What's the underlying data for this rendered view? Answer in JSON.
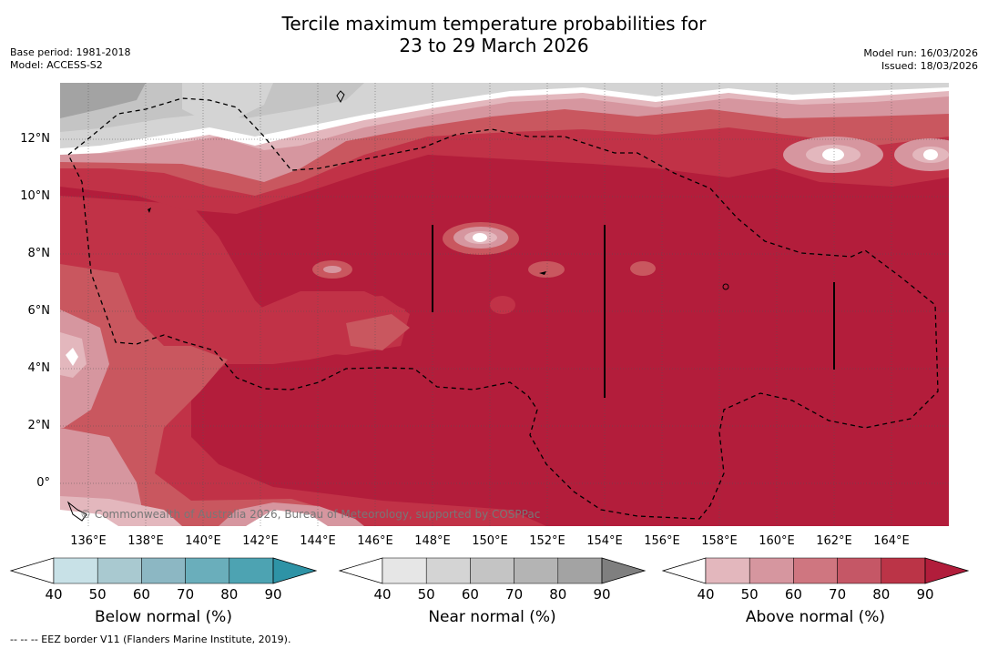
{
  "title_line1": "Tercile maximum temperature probabilities for",
  "title_line2": "23 to 29 March 2026",
  "base_period": "Base period: 1981-2018",
  "model": "Model: ACCESS-S2",
  "model_run": "Model run: 16/03/2026",
  "issued": "Issued: 18/03/2026",
  "lat_labels": [
    "12°N",
    "10°N",
    "8°N",
    "6°N",
    "4°N",
    "2°N",
    "0°"
  ],
  "lon_labels": [
    "136°E",
    "138°E",
    "140°E",
    "142°E",
    "144°E",
    "146°E",
    "148°E",
    "150°E",
    "152°E",
    "154°E",
    "156°E",
    "158°E",
    "160°E",
    "162°E",
    "164°E"
  ],
  "copyright": "© Commonwealth of Australia 2026, Bureau of Meteorology, supported by COSPPac",
  "colorbars": {
    "below": {
      "title": "Below normal (%)",
      "ticks": [
        "40",
        "50",
        "60",
        "70",
        "80",
        "90"
      ],
      "colors": [
        "#ffffff",
        "#c8e1e7",
        "#a9c9d0",
        "#8cb7c3",
        "#6aaebb",
        "#4da3b2",
        "#2e93a6"
      ]
    },
    "near": {
      "title": "Near normal (%)",
      "ticks": [
        "40",
        "50",
        "60",
        "70",
        "80",
        "90"
      ],
      "colors": [
        "#ffffff",
        "#e6e6e6",
        "#d4d4d4",
        "#c4c4c4",
        "#b4b4b4",
        "#a3a3a3",
        "#7f7f7f"
      ]
    },
    "above": {
      "title": "Above normal (%)",
      "ticks": [
        "40",
        "50",
        "60",
        "70",
        "80",
        "90"
      ],
      "colors": [
        "#ffffff",
        "#e3b7bd",
        "#d6969f",
        "#cf7680",
        "#c55766",
        "#bb3447",
        "#b11d3b"
      ]
    }
  },
  "footnote": "--  --  -- EEZ border V11 (Flanders Marine Institute, 2019)."
}
